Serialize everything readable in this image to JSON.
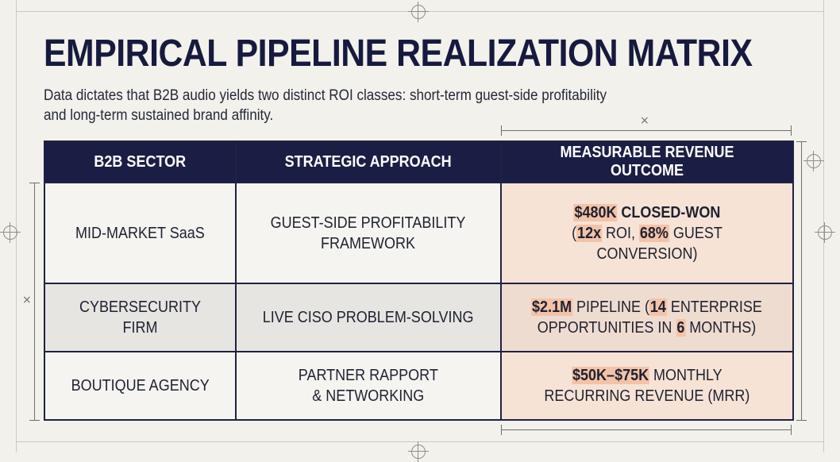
{
  "title": "EMPIRICAL PIPELINE REALIZATION MATRIX",
  "subtitle_line1": "Data dictates that B2B audio yields two distinct ROI classes: short-term guest-side profitability",
  "subtitle_line2": "and long-term sustained brand affinity.",
  "columns": [
    "B2B SECTOR",
    "STRATEGIC APPROACH",
    "MEASURABLE REVENUE OUTCOME"
  ],
  "rows": [
    {
      "sector": "MID-MARKET SaaS",
      "approach_line1": "GUEST-SIDE PROFITABILITY",
      "approach_line2": "FRAMEWORK",
      "outcome": {
        "a": "$480K",
        "b": " CLOSED-WON",
        "c": "(",
        "d": "12x",
        "e": " ROI, ",
        "f": "68%",
        "g": " GUEST CONVERSION)"
      }
    },
    {
      "sector": "CYBERSECURITY FIRM",
      "approach_line1": "LIVE CISO PROBLEM-SOLVING",
      "outcome": {
        "a": "$2.1M",
        "b": " PIPELINE (",
        "c": "14",
        "d": " ENTERPRISE",
        "e": "OPPORTUNITIES IN ",
        "f": "6",
        "g": " MONTHS)"
      }
    },
    {
      "sector": "BOUTIQUE AGENCY",
      "approach_line1": "PARTNER RAPPORT",
      "approach_line2": "& NETWORKING",
      "outcome": {
        "a": "$50K–$75K",
        "b": " MONTHLY",
        "c": "RECURRING REVENUE (MRR)"
      }
    }
  ]
}
